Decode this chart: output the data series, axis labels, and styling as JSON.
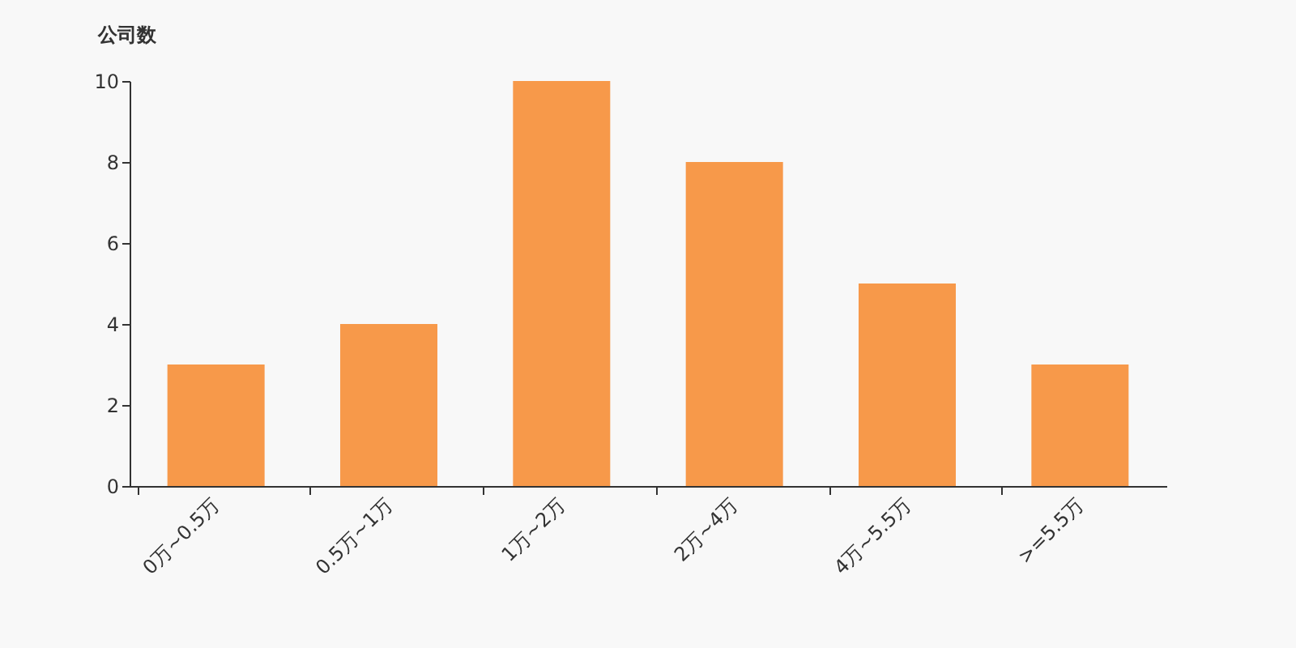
{
  "chart_data": {
    "type": "bar",
    "ylabel": "公司数",
    "categories": [
      "0万~0.5万",
      "0.5万~1万",
      "1万~2万",
      "2万~4万",
      "4万~5.5万",
      ">=5.5万"
    ],
    "values": [
      3,
      4,
      10,
      8,
      5,
      3
    ],
    "color": "#f7994a",
    "ylim": [
      0,
      10
    ],
    "yticks": [
      0,
      2,
      4,
      6,
      8,
      10
    ],
    "grid": false
  }
}
